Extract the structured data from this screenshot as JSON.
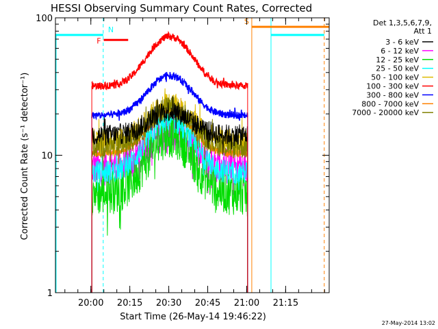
{
  "chart_data": {
    "type": "line",
    "title": "HESSI Observing Summary Count Rates, Corrected",
    "xlabel": "Start Time (26-May-14 19:46:22)",
    "ylabel": "Corrected Count Rate (s⁻¹ detector⁻¹)",
    "yscale": "log",
    "ylim": [
      1,
      100
    ],
    "xlim_minutes": [
      0,
      105.4
    ],
    "x_ticks": [
      "20:00",
      "20:15",
      "20:30",
      "20:45",
      "21:00",
      "21:15"
    ],
    "y_ticks": [
      "1",
      "10",
      "100"
    ],
    "legend": {
      "title_line1": "Det 1,3,5,6,7,9,",
      "title_line2": "Att 1",
      "position": "right"
    },
    "series": [
      {
        "name": "3 - 6 keV",
        "color": "#000000",
        "start": 14,
        "end": 74,
        "base": 14,
        "peak": 21
      },
      {
        "name": "6 - 12 keV",
        "color": "#ff00ff",
        "start": 14,
        "end": 74,
        "base": 8.2,
        "peak": 15
      },
      {
        "name": "12 - 25 keV",
        "color": "#00dd00",
        "start": 14,
        "end": 74,
        "base": 5.3,
        "peak": 14
      },
      {
        "name": "25 - 50 keV",
        "color": "#00ffff",
        "start": 14,
        "end": 74,
        "base": 7.5,
        "peak": 18
      },
      {
        "name": "50 - 100 keV",
        "color": "#ddbb00",
        "start": 14,
        "end": 74,
        "base": 12.5,
        "peak": 23
      },
      {
        "name": "100 - 300 keV",
        "color": "#ff0000",
        "start": 14,
        "end": 74,
        "base": 32,
        "peak": 73
      },
      {
        "name": "300 - 800 keV",
        "color": "#0000ff",
        "start": 14,
        "end": 74,
        "base": 19.5,
        "peak": 38
      },
      {
        "name": "800 - 7000 keV",
        "color": "#ff8000",
        "start": 14,
        "end": 74,
        "base": 10.3,
        "peak": 21
      },
      {
        "name": "7000 - 20000 keV",
        "color": "#808000",
        "start": 14,
        "end": 74,
        "base": 11.5,
        "peak": 22
      }
    ],
    "flags": [
      {
        "label": "N",
        "color": "#00ffff",
        "x_start": 0,
        "x_end": 18.4,
        "y": 75
      },
      {
        "label": "F",
        "color": "#ff0000",
        "x_start": 18.6,
        "x_end": 28,
        "y": 69
      },
      {
        "label": "S",
        "color": "#ff8000",
        "x_start": 75.6,
        "x_end": 105.4,
        "y": 86
      },
      {
        "label": "",
        "color": "#00ffff",
        "x_start": 83,
        "x_end": 103.5,
        "y": 75
      }
    ],
    "markers": [
      {
        "color": "#00ffff",
        "x": 18.4,
        "style": "dashed"
      },
      {
        "color": "#00ffff",
        "x": 83,
        "style": "solid"
      },
      {
        "color": "#ff8000",
        "x": 75.6,
        "style": "solid"
      },
      {
        "color": "#ff8000",
        "x": 103.5,
        "style": "dashed"
      }
    ]
  },
  "footer": {
    "stamp": "27-May-2014 13:02"
  }
}
